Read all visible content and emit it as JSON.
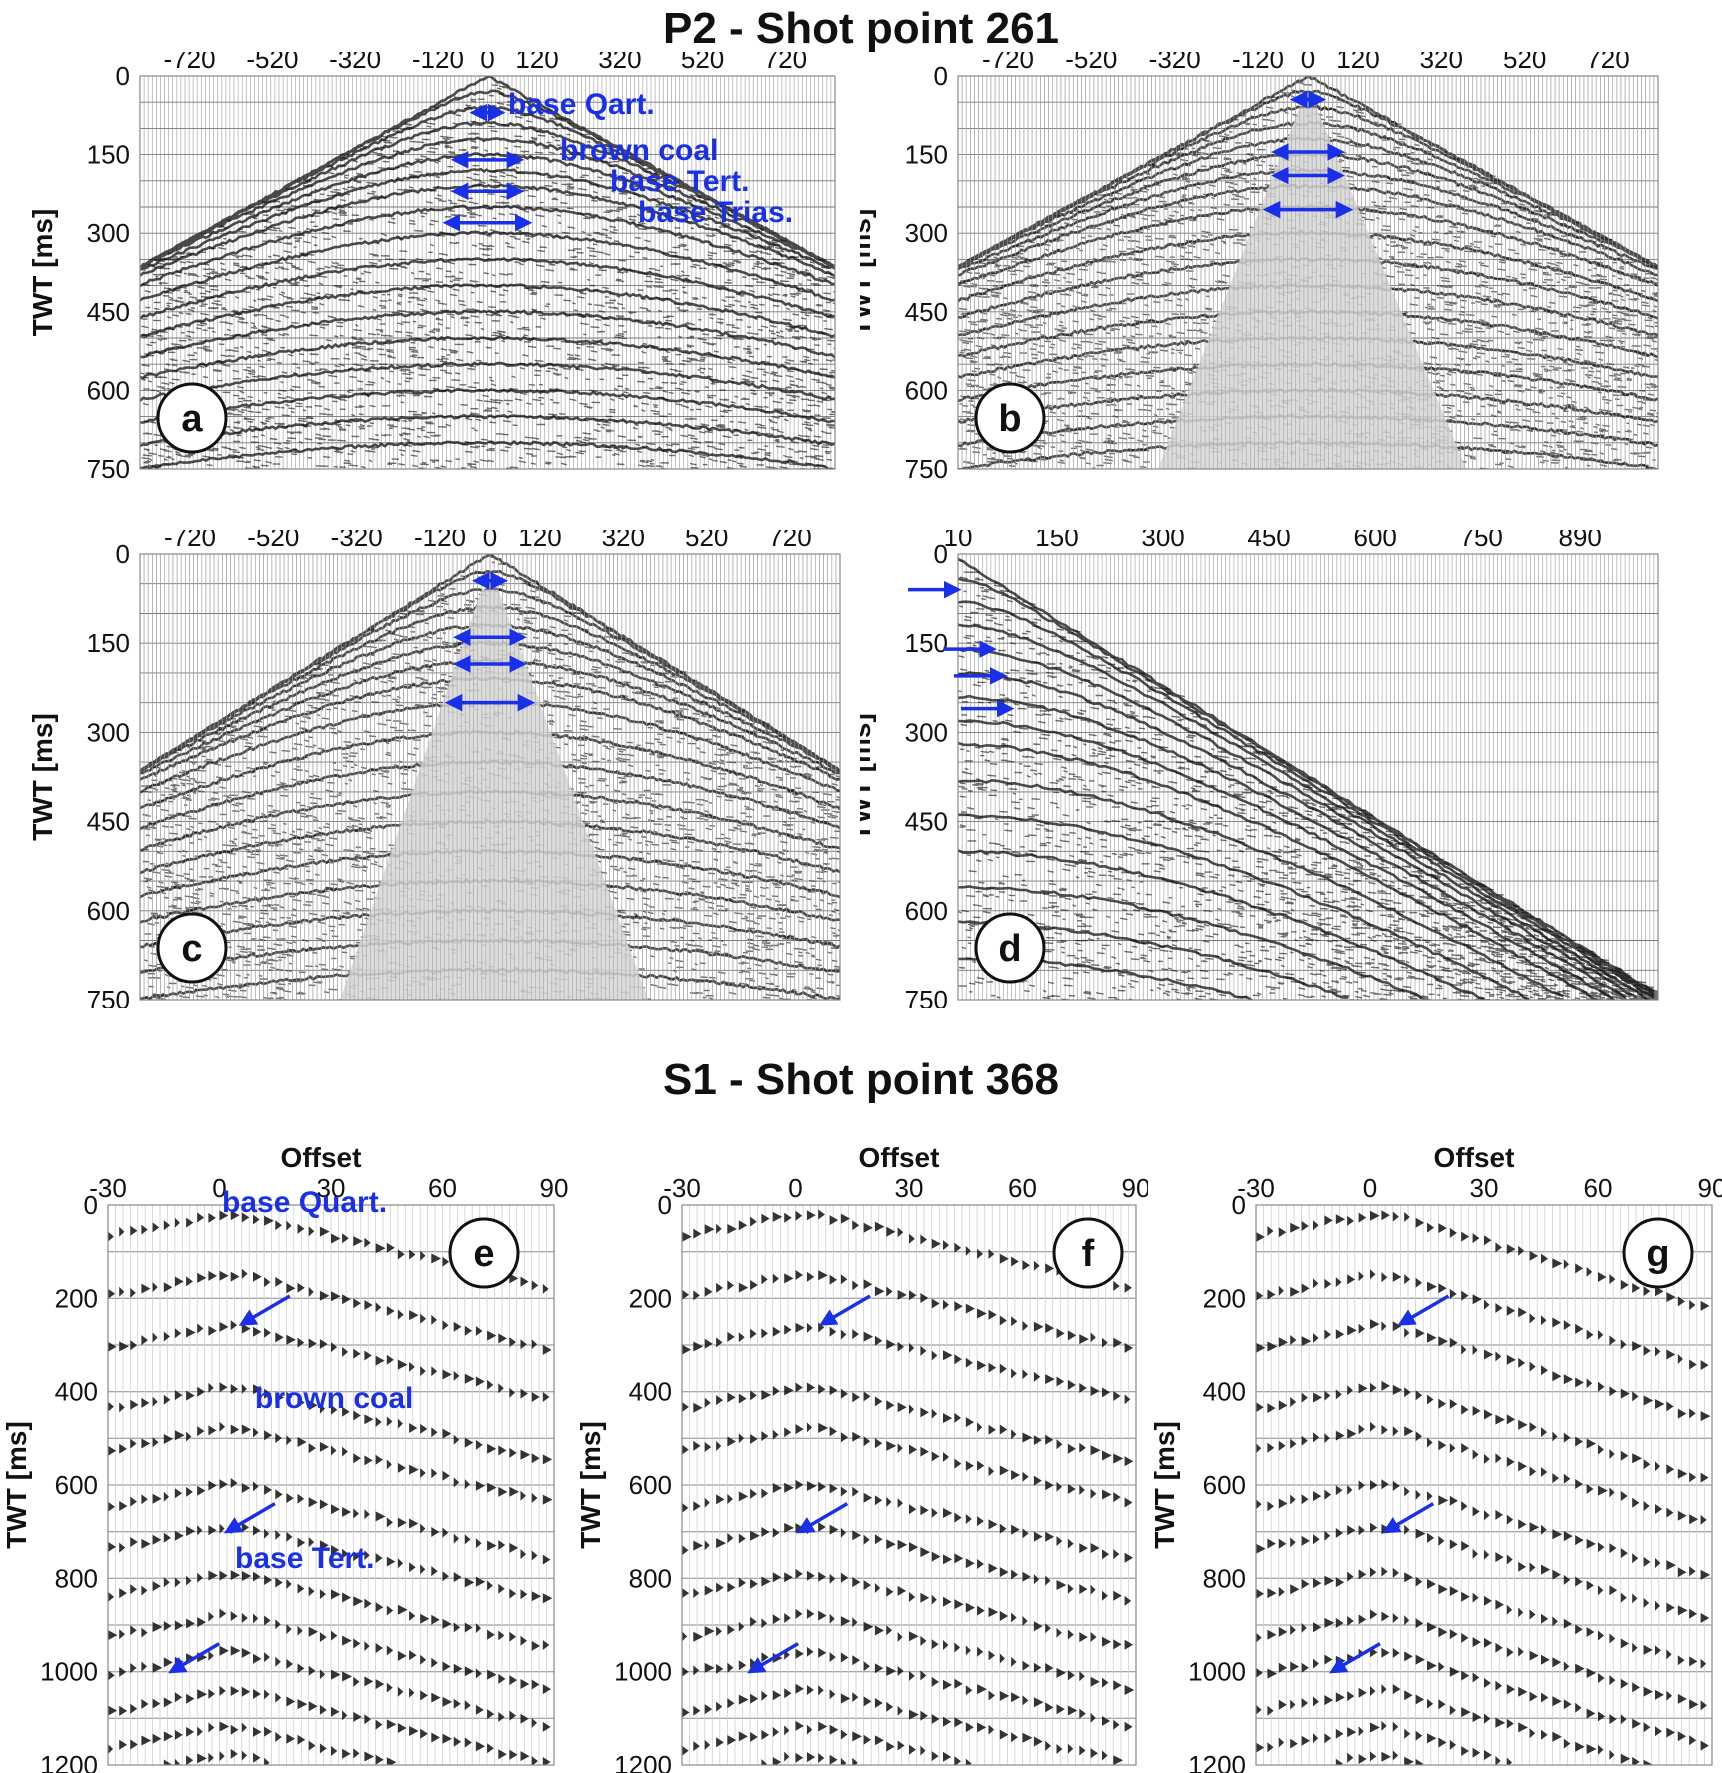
{
  "titles": {
    "top": "P2 - Shot point 261",
    "bottom": "S1 - Shot point 368"
  },
  "axis": {
    "offset_label": "Offset",
    "twt_label": "TWT [ms]"
  },
  "colors": {
    "annotation_blue": "#1a2fe8",
    "trace_black": "#111111",
    "background_gray": "#c8c8c8"
  },
  "panels": [
    {
      "id": "a",
      "letter": "a",
      "x_ticks": [
        "-720",
        "-520",
        "-320",
        "-120",
        "0",
        "120",
        "320",
        "520",
        "720"
      ],
      "x_tick_values": [
        -720,
        -520,
        -320,
        -120,
        0,
        120,
        320,
        520,
        720
      ],
      "x_range": [
        -840,
        840
      ],
      "y_ticks": [
        "0",
        "150",
        "300",
        "450",
        "600",
        "750"
      ],
      "y_range": [
        0,
        750
      ],
      "labels": [
        "base Qart.",
        "brown coal",
        "base Tert.",
        "base Trias."
      ],
      "markers": [
        {
          "type": "double",
          "x": 0,
          "t": 70,
          "half": 35
        },
        {
          "type": "double",
          "x": 0,
          "t": 160,
          "half": 80
        },
        {
          "type": "double",
          "x": 0,
          "t": 220,
          "half": 80
        },
        {
          "type": "double",
          "x": 0,
          "t": 280,
          "half": 100
        }
      ]
    },
    {
      "id": "b",
      "letter": "b",
      "x_ticks": [
        "-720",
        "-520",
        "-320",
        "-120",
        "0",
        "120",
        "320",
        "520",
        "720"
      ],
      "x_tick_values": [
        -720,
        -520,
        -320,
        -120,
        0,
        120,
        320,
        520,
        720
      ],
      "x_range": [
        -840,
        840
      ],
      "y_ticks": [
        "0",
        "150",
        "300",
        "450",
        "600",
        "750"
      ],
      "y_range": [
        0,
        750
      ],
      "labels": [],
      "markers": [
        {
          "type": "double",
          "x": 0,
          "t": 45,
          "half": 35
        },
        {
          "type": "double",
          "x": 0,
          "t": 145,
          "half": 80
        },
        {
          "type": "double",
          "x": 0,
          "t": 190,
          "half": 80
        },
        {
          "type": "double",
          "x": 0,
          "t": 255,
          "half": 100
        }
      ]
    },
    {
      "id": "c",
      "letter": "c",
      "x_ticks": [
        "-720",
        "-520",
        "-320",
        "-120",
        "0",
        "120",
        "320",
        "520",
        "720"
      ],
      "x_tick_values": [
        -720,
        -520,
        -320,
        -120,
        0,
        120,
        320,
        520,
        720
      ],
      "x_range": [
        -840,
        840
      ],
      "y_ticks": [
        "0",
        "150",
        "300",
        "450",
        "600",
        "750"
      ],
      "y_range": [
        0,
        750
      ],
      "labels": [],
      "markers": [
        {
          "type": "double",
          "x": 0,
          "t": 45,
          "half": 35
        },
        {
          "type": "double",
          "x": 0,
          "t": 140,
          "half": 80
        },
        {
          "type": "double",
          "x": 0,
          "t": 185,
          "half": 80
        },
        {
          "type": "double",
          "x": 0,
          "t": 250,
          "half": 100
        }
      ]
    },
    {
      "id": "d",
      "letter": "d",
      "x_ticks": [
        "10",
        "150",
        "300",
        "450",
        "600",
        "750",
        "890"
      ],
      "x_tick_values": [
        10,
        150,
        300,
        450,
        600,
        750,
        890
      ],
      "x_range": [
        10,
        1000
      ],
      "y_ticks": [
        "0",
        "150",
        "300",
        "450",
        "600",
        "750"
      ],
      "y_range": [
        0,
        750
      ],
      "labels": [],
      "markers": [
        {
          "type": "right",
          "x": 10,
          "t": 60
        },
        {
          "type": "right",
          "x": 60,
          "t": 160
        },
        {
          "type": "right",
          "x": 75,
          "t": 205
        },
        {
          "type": "right",
          "x": 85,
          "t": 260
        }
      ]
    },
    {
      "id": "e",
      "letter": "e",
      "x_ticks": [
        "-30",
        "0",
        "30",
        "60",
        "90"
      ],
      "x_tick_values": [
        -30,
        0,
        30,
        60,
        90
      ],
      "x_range": [
        -30,
        90
      ],
      "y_ticks": [
        "0",
        "200",
        "400",
        "600",
        "800",
        "1000",
        "1200"
      ],
      "y_range": [
        0,
        1200
      ],
      "labels": [
        "base Quart.",
        "brown coal",
        "base Tert."
      ],
      "markers": [
        {
          "type": "diag",
          "x": 6,
          "t": 255
        },
        {
          "type": "diag",
          "x": 2,
          "t": 700
        },
        {
          "type": "diag",
          "x": -13,
          "t": 1000
        }
      ]
    },
    {
      "id": "f",
      "letter": "f",
      "x_ticks": [
        "-30",
        "0",
        "30",
        "60",
        "90"
      ],
      "x_tick_values": [
        -30,
        0,
        30,
        60,
        90
      ],
      "x_range": [
        -30,
        90
      ],
      "y_ticks": [
        "0",
        "200",
        "400",
        "600",
        "800",
        "1000",
        "1200"
      ],
      "y_range": [
        0,
        1200
      ],
      "labels": [],
      "markers": [
        {
          "type": "diag",
          "x": 7,
          "t": 255
        },
        {
          "type": "diag",
          "x": 1,
          "t": 700
        },
        {
          "type": "diag",
          "x": -12,
          "t": 1000
        }
      ]
    },
    {
      "id": "g",
      "letter": "g",
      "x_ticks": [
        "-30",
        "0",
        "30",
        "60",
        "90"
      ],
      "x_tick_values": [
        -30,
        0,
        30,
        60,
        90
      ],
      "x_range": [
        -30,
        90
      ],
      "y_ticks": [
        "0",
        "200",
        "400",
        "600",
        "800",
        "1000",
        "1200"
      ],
      "y_range": [
        0,
        1200
      ],
      "labels": [],
      "markers": [
        {
          "type": "diag",
          "x": 8,
          "t": 255
        },
        {
          "type": "diag",
          "x": 4,
          "t": 700
        },
        {
          "type": "diag",
          "x": -10,
          "t": 1000
        }
      ]
    }
  ]
}
